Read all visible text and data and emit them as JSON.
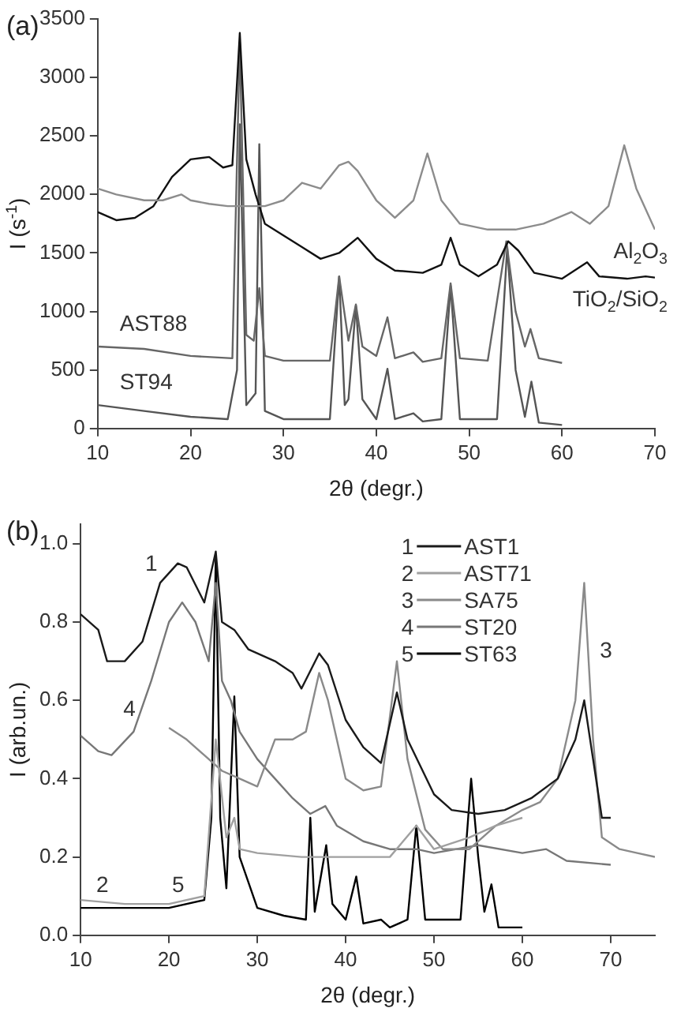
{
  "chart_data": [
    {
      "type": "line",
      "title": "(a)",
      "xlabel": "2θ (degr.)",
      "ylabel": "I (s$^{-1}$)",
      "xlim": [
        10,
        70
      ],
      "xticks": [
        10,
        20,
        30,
        40,
        50,
        60,
        70
      ],
      "ylim": [
        0,
        3500
      ],
      "yticks": [
        0,
        500,
        1000,
        1500,
        2000,
        2500,
        3000,
        3500
      ],
      "grid": false,
      "series": [
        {
          "name": "Al$_{2}$O$_{3}$",
          "color": "#8c8c8c",
          "x": [
            10,
            12,
            15,
            17,
            19,
            20,
            22,
            24,
            26,
            28,
            30,
            32,
            34,
            36,
            37,
            38,
            40,
            42,
            44,
            45.5,
            47,
            49,
            52,
            55,
            58,
            61,
            63,
            65,
            66.7,
            68,
            70
          ],
          "values": [
            2050,
            2000,
            1950,
            1950,
            2000,
            1950,
            1920,
            1900,
            1900,
            1900,
            1950,
            2100,
            2050,
            2250,
            2280,
            2200,
            1950,
            1800,
            1950,
            2350,
            1950,
            1750,
            1700,
            1700,
            1750,
            1850,
            1750,
            1900,
            2420,
            2050,
            1700
          ]
        },
        {
          "name": "TiO$_{2}$/SiO$_{2}$",
          "color": "#111111",
          "x": [
            10,
            12,
            14,
            16,
            18,
            20,
            22,
            23.5,
            24.5,
            25.3,
            26,
            27,
            28,
            30,
            32,
            34,
            36,
            38,
            40,
            42,
            45,
            47,
            48,
            49,
            51,
            53,
            54.2,
            55.3,
            57,
            60,
            62.7,
            64,
            67,
            69,
            70
          ],
          "values": [
            1850,
            1780,
            1800,
            1900,
            2150,
            2300,
            2320,
            2230,
            2250,
            3380,
            2300,
            2000,
            1750,
            1650,
            1550,
            1450,
            1500,
            1630,
            1450,
            1350,
            1330,
            1400,
            1630,
            1400,
            1300,
            1400,
            1600,
            1520,
            1330,
            1280,
            1420,
            1300,
            1280,
            1300,
            1290
          ]
        },
        {
          "name": "AST88",
          "color": "#666666",
          "x": [
            10,
            15,
            20,
            24.5,
            25.3,
            26,
            26.8,
            27.4,
            28,
            30,
            35,
            36,
            37,
            37.8,
            38.5,
            40,
            41.2,
            42,
            44,
            45,
            47,
            48,
            49,
            52,
            54,
            55,
            56,
            56.6,
            57.5,
            60
          ],
          "values": [
            700,
            680,
            620,
            600,
            3300,
            800,
            750,
            1200,
            620,
            580,
            580,
            1300,
            750,
            1060,
            700,
            620,
            950,
            600,
            650,
            570,
            600,
            1240,
            600,
            580,
            1600,
            1000,
            700,
            850,
            600,
            560
          ]
        },
        {
          "name": "ST94",
          "color": "#555555",
          "x": [
            10,
            15,
            20,
            24,
            25,
            25.3,
            26,
            27,
            27.4,
            28,
            30,
            35,
            36,
            36.6,
            37,
            37.8,
            38.5,
            40,
            41.2,
            42,
            44,
            45,
            47,
            48,
            49,
            53,
            54.1,
            55,
            56,
            56.7,
            57.5,
            60
          ],
          "values": [
            200,
            150,
            100,
            80,
            500,
            2600,
            200,
            300,
            2430,
            150,
            80,
            80,
            1300,
            200,
            250,
            1050,
            250,
            80,
            510,
            80,
            130,
            60,
            80,
            1220,
            80,
            80,
            1550,
            500,
            100,
            400,
            50,
            30
          ]
        }
      ]
    },
    {
      "type": "line",
      "title": "(b)",
      "xlabel": "2θ (degr.)",
      "ylabel": "I (arb.un.)",
      "xlim": [
        10,
        75
      ],
      "xticks": [
        10,
        20,
        30,
        40,
        50,
        60,
        70
      ],
      "ylim": [
        0,
        1.05
      ],
      "yticks": [
        {
          "value": 0,
          "label": "0.0"
        },
        {
          "value": 0.2,
          "label": "0.2"
        },
        {
          "value": 0.4,
          "label": "0.4"
        },
        {
          "value": 0.6,
          "label": "0.6"
        },
        {
          "value": 0.8,
          "label": "0.8"
        },
        {
          "value": 1,
          "label": "1.0"
        }
      ],
      "grid": false,
      "legend": "top right",
      "annotations": [
        "1",
        "2",
        "3",
        "4",
        "5"
      ],
      "series": [
        {
          "name": "AST1",
          "color": "#1a1a1a",
          "x": [
            10,
            12,
            13,
            15,
            17,
            19,
            21,
            22,
            24,
            25.3,
            26,
            27.4,
            29,
            32,
            34,
            35,
            37,
            38,
            40,
            42,
            44,
            45.8,
            47,
            50,
            52,
            55,
            58,
            61,
            64,
            66,
            67,
            68,
            69,
            70
          ],
          "values": [
            0.82,
            0.78,
            0.7,
            0.7,
            0.75,
            0.9,
            0.95,
            0.94,
            0.85,
            0.98,
            0.8,
            0.78,
            0.73,
            0.7,
            0.67,
            0.63,
            0.72,
            0.69,
            0.55,
            0.48,
            0.44,
            0.62,
            0.5,
            0.36,
            0.32,
            0.31,
            0.32,
            0.35,
            0.4,
            0.5,
            0.6,
            0.45,
            0.3,
            0.3
          ]
        },
        {
          "name": "AST71",
          "color": "#a0a0a0",
          "x": [
            10,
            15,
            20,
            24,
            25.3,
            26.5,
            27.4,
            28,
            30,
            35,
            40,
            45,
            48,
            50,
            54,
            57,
            60
          ],
          "values": [
            0.09,
            0.08,
            0.08,
            0.1,
            0.5,
            0.25,
            0.3,
            0.22,
            0.21,
            0.2,
            0.2,
            0.2,
            0.28,
            0.22,
            0.25,
            0.28,
            0.3
          ]
        },
        {
          "name": "SA75",
          "color": "#8a8a8a",
          "x": [
            20,
            22,
            24,
            26,
            28,
            30,
            32,
            34,
            35.5,
            37,
            38,
            40,
            42,
            44,
            45.8,
            47,
            49,
            51,
            54,
            57,
            60,
            62,
            64,
            66,
            67,
            68,
            69,
            71,
            73,
            75
          ],
          "values": [
            0.53,
            0.5,
            0.46,
            0.42,
            0.4,
            0.38,
            0.5,
            0.5,
            0.52,
            0.67,
            0.6,
            0.4,
            0.37,
            0.38,
            0.7,
            0.45,
            0.27,
            0.22,
            0.22,
            0.28,
            0.32,
            0.34,
            0.4,
            0.6,
            0.9,
            0.5,
            0.25,
            0.22,
            0.21,
            0.2
          ]
        },
        {
          "name": "ST20",
          "color": "#777777",
          "x": [
            10,
            12,
            13.5,
            16,
            18,
            20,
            21.5,
            23,
            24.5,
            25.3,
            26,
            27,
            28,
            30,
            32,
            34,
            36,
            37.7,
            39,
            42,
            45,
            48,
            50,
            55,
            60,
            62.7,
            65,
            70
          ],
          "values": [
            0.51,
            0.47,
            0.46,
            0.52,
            0.65,
            0.8,
            0.85,
            0.8,
            0.7,
            0.9,
            0.65,
            0.6,
            0.52,
            0.45,
            0.4,
            0.35,
            0.31,
            0.33,
            0.28,
            0.24,
            0.22,
            0.22,
            0.21,
            0.23,
            0.21,
            0.22,
            0.19,
            0.18
          ]
        },
        {
          "name": "ST63",
          "color": "#000000",
          "x": [
            10,
            15,
            20,
            24,
            24.8,
            25.3,
            25.8,
            26.5,
            27.4,
            28,
            30,
            33,
            35.5,
            36,
            36.5,
            37.8,
            38.5,
            40,
            41.2,
            42,
            44,
            45,
            47,
            48,
            49,
            53,
            54.2,
            55,
            55.7,
            56.5,
            57.3,
            60
          ],
          "values": [
            0.07,
            0.07,
            0.07,
            0.09,
            0.3,
            0.97,
            0.3,
            0.12,
            0.61,
            0.2,
            0.07,
            0.05,
            0.04,
            0.3,
            0.06,
            0.23,
            0.08,
            0.04,
            0.15,
            0.03,
            0.04,
            0.02,
            0.04,
            0.28,
            0.04,
            0.04,
            0.4,
            0.2,
            0.06,
            0.13,
            0.02,
            0.02
          ]
        }
      ]
    }
  ]
}
